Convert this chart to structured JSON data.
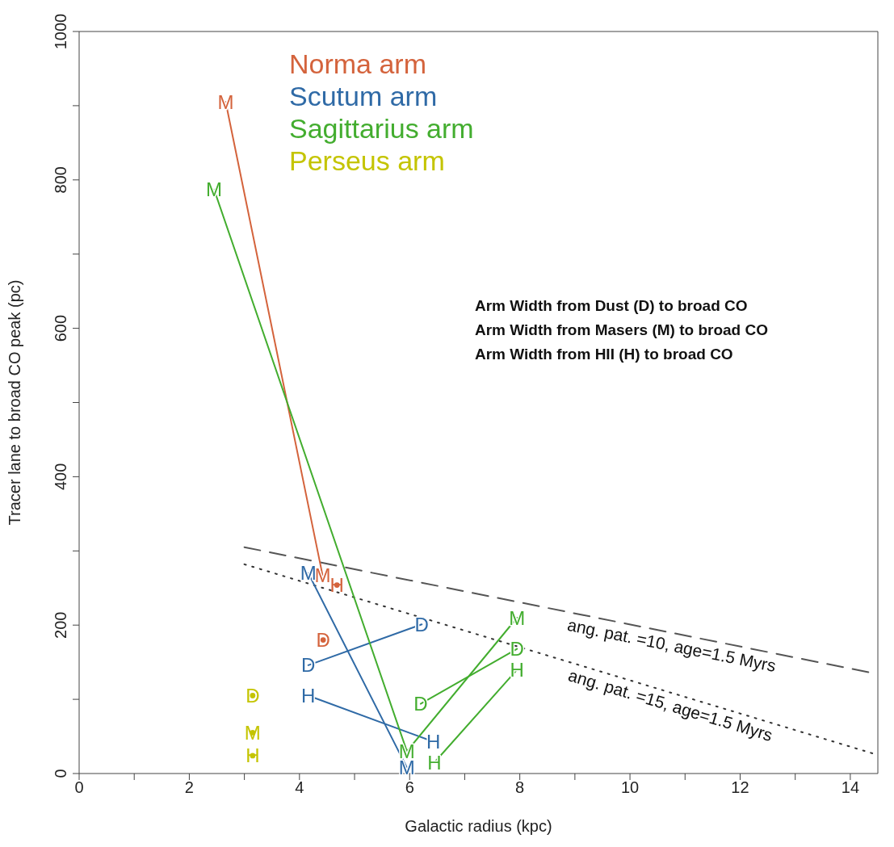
{
  "chart_data": {
    "type": "line",
    "xlabel": "Galactic radius (kpc)",
    "ylabel": "Tracer lane to broad CO peak (pc)",
    "xlim": [
      0,
      14.5
    ],
    "ylim": [
      0,
      1000
    ],
    "xticks": [
      0,
      {
        "value": 1,
        "label": null
      },
      2,
      {
        "value": 3,
        "label": null
      },
      4,
      {
        "value": 5,
        "label": null
      },
      6,
      {
        "value": 7,
        "label": null
      },
      8,
      {
        "value": 9,
        "label": null
      },
      10,
      {
        "value": 11,
        "label": null
      },
      12,
      {
        "value": 13,
        "label": null
      },
      14
    ],
    "yticks": [
      0,
      {
        "value": 100,
        "label": null
      },
      200,
      {
        "value": 300,
        "label": null
      },
      400,
      {
        "value": 500,
        "label": null
      },
      600,
      {
        "value": 700,
        "label": null
      },
      800,
      {
        "value": 900,
        "label": null
      },
      1000
    ],
    "marker": "none",
    "legend": "top left",
    "series": [
      {
        "color": "#555555",
        "line_style": "dashed",
        "x": [
          3,
          14.5
        ],
        "values": [
          305,
          134
        ]
      },
      {
        "color": "#333333",
        "line_style": "dotted",
        "x": [
          3,
          14.5
        ],
        "values": [
          282,
          25
        ]
      },
      {
        "name": "Norma arm",
        "color": "#d4633c",
        "x": [
          2.66,
          4.42
        ],
        "values": [
          905,
          267
        ],
        "value_labels": [
          "M",
          "M"
        ]
      },
      {
        "type": "scatter",
        "color": "#d4633c",
        "x": [
          4.68,
          4.43
        ],
        "values": [
          254,
          180
        ],
        "value_labels": [
          "H",
          "D"
        ]
      },
      {
        "name": "Scutum arm",
        "color": "#2f6aa6",
        "x": [
          4.16,
          5.95
        ],
        "values": [
          270,
          8
        ],
        "value_labels": [
          "M",
          "M"
        ]
      },
      {
        "color": "#2f6aa6",
        "x": [
          4.16,
          6.22
        ],
        "values": [
          146,
          201
        ],
        "value_labels": [
          "D",
          "D"
        ]
      },
      {
        "color": "#2f6aa6",
        "x": [
          4.16,
          6.43
        ],
        "values": [
          105,
          43
        ],
        "value_labels": [
          "H",
          "H"
        ]
      },
      {
        "name": "Sagittarius arm",
        "color": "#43ad2f",
        "x": [
          2.45,
          5.95,
          7.95
        ],
        "values": [
          787,
          30,
          210
        ],
        "value_labels": [
          "M",
          "M",
          "M"
        ]
      },
      {
        "color": "#43ad2f",
        "x": [
          6.2,
          7.95
        ],
        "values": [
          94,
          168
        ],
        "value_labels": [
          "D",
          "D"
        ]
      },
      {
        "color": "#43ad2f",
        "x": [
          6.45,
          7.95
        ],
        "values": [
          15,
          140
        ],
        "value_labels": [
          "H",
          "H"
        ]
      },
      {
        "name": "Perseus arm",
        "type": "scatter",
        "color": "#c4c400",
        "x": [
          3.15,
          3.15,
          3.15
        ],
        "values": [
          105,
          55,
          24
        ],
        "value_labels": [
          "D",
          "M",
          "H"
        ]
      }
    ],
    "annotations": [
      "Arm Width from Dust (D) to broad CO",
      "Arm Width from Masers (M) to broad CO",
      "Arm Width from HII (H) to broad CO",
      {
        "text": "ang. pat. =10, age=1.5 Myrs",
        "x": 10.8,
        "y": 189
      },
      {
        "text": "ang. pat. =15, age=1.5 Myrs",
        "x": 10.8,
        "y": 108
      }
    ]
  }
}
